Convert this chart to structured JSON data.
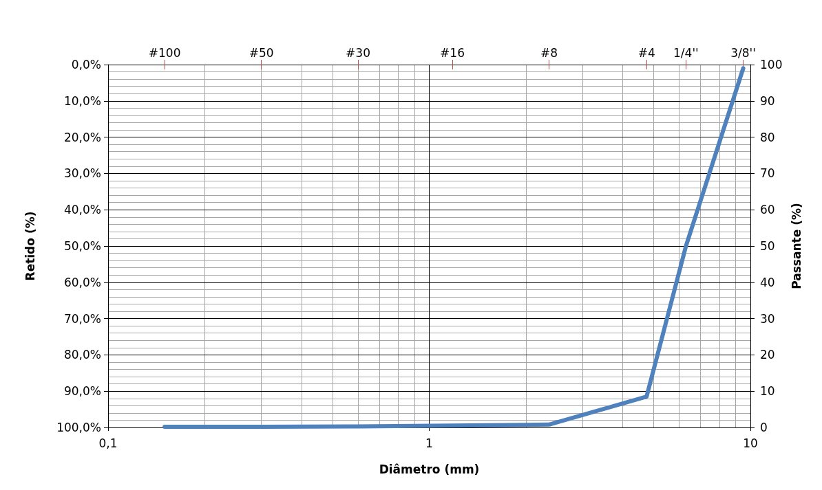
{
  "chart_data": {
    "type": "line",
    "xlabel": "Diâmetro (mm)",
    "ylabel": "Retido (%)",
    "y2label": "Passante (%)",
    "log": "x",
    "grid": true,
    "marker": "none",
    "line_style": "solid",
    "xlim": [
      0.1,
      10
    ],
    "xticks": [
      {
        "value": 0.1,
        "label": "0,1"
      },
      1,
      10
    ],
    "annotations": [
      "#100",
      "#50",
      "#30",
      "#16",
      "#8",
      "#4",
      "1/4''",
      "3/8''"
    ],
    "ylim": [
      100,
      0
    ],
    "yticks": [
      {
        "value": 0,
        "label": "0,0%"
      },
      {
        "value": 10,
        "label": "10,0%"
      },
      {
        "value": 20,
        "label": "20,0%"
      },
      {
        "value": 30,
        "label": "30,0%"
      },
      {
        "value": 40,
        "label": "40,0%"
      },
      {
        "value": 50,
        "label": "50,0%"
      },
      {
        "value": 60,
        "label": "60,0%"
      },
      {
        "value": 70,
        "label": "70,0%"
      },
      {
        "value": 80,
        "label": "80,0%"
      },
      {
        "value": 90,
        "label": "90,0%"
      },
      {
        "value": 100,
        "label": "100,0%"
      }
    ],
    "y2lim": [
      0,
      100
    ],
    "y2ticks": [
      0,
      10,
      20,
      30,
      40,
      50,
      60,
      70,
      80,
      90,
      100
    ],
    "series": [
      {
        "color": "#4f81bd",
        "axis": "y2",
        "x": [
          0.15,
          0.3,
          0.6,
          1.18,
          2.36,
          4.75,
          6.3,
          9.5
        ],
        "values": [
          0.2,
          0.2,
          0.3,
          0.5,
          0.8,
          8.5,
          50,
          99
        ]
      }
    ]
  }
}
